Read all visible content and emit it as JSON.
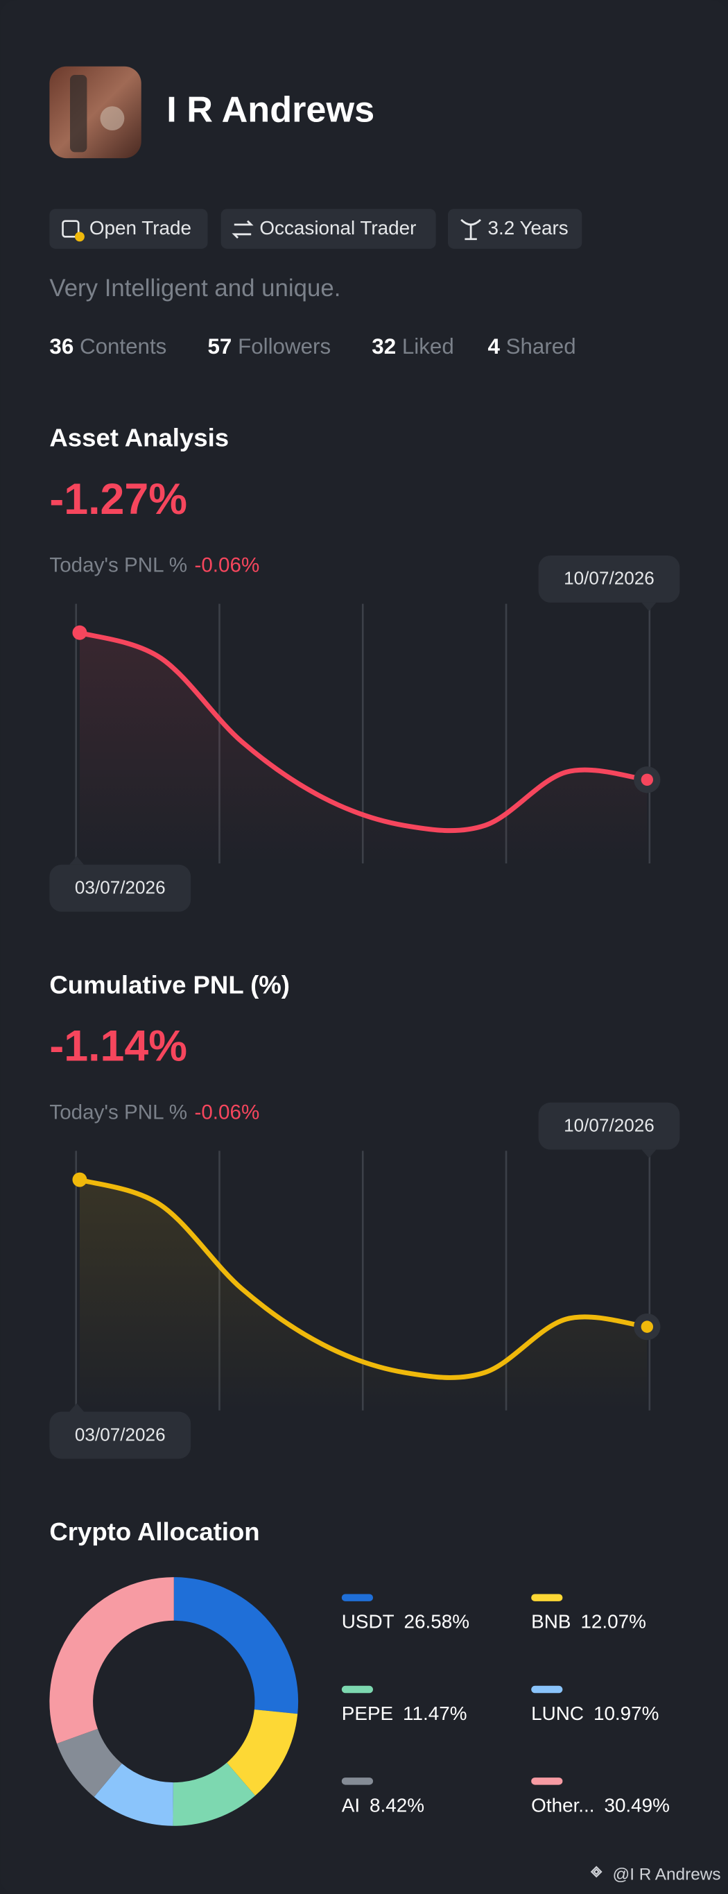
{
  "profile": {
    "name": "I R Andrews",
    "tags": [
      "Open Trade",
      "Occasional Trader",
      "3.2 Years"
    ],
    "bio": "Very Intelligent and unique.",
    "stats": [
      {
        "value": "36",
        "label": "Contents"
      },
      {
        "value": "57",
        "label": "Followers"
      },
      {
        "value": "32",
        "label": "Liked"
      },
      {
        "value": "4",
        "label": "Shared"
      }
    ]
  },
  "chart_data": [
    {
      "type": "line",
      "title": "Asset Analysis",
      "headline": "-1.27%",
      "pnl_label": "Today's PNL %",
      "pnl_value": "-0.06%",
      "categories": [
        "03/07/2026",
        null,
        null,
        null,
        null,
        null,
        null,
        "10/07/2026"
      ],
      "values": [
        91,
        81,
        48,
        26,
        15,
        15,
        36,
        33
      ],
      "color": "#f6465d",
      "ylim": [
        0,
        100
      ],
      "grid": true
    },
    {
      "type": "line",
      "title": "Cumulative PNL (%)",
      "headline": "-1.14%",
      "pnl_label": "Today's PNL %",
      "pnl_value": "-0.06%",
      "categories": [
        "03/07/2026",
        null,
        null,
        null,
        null,
        null,
        null,
        "10/07/2026"
      ],
      "values": [
        91,
        81,
        48,
        26,
        15,
        15,
        36,
        33
      ],
      "color": "#f0b90b",
      "ylim": [
        0,
        100
      ],
      "grid": true
    },
    {
      "type": "pie",
      "title": "Crypto Allocation",
      "categories": [
        "USDT",
        "BNB",
        "PEPE",
        "LUNC",
        "AI",
        "Other..."
      ],
      "values": [
        26.58,
        12.07,
        11.47,
        10.97,
        8.42,
        30.49
      ],
      "value_labels": [
        "26.58%",
        "12.07%",
        "11.47%",
        "10.97%",
        "8.42%",
        "30.49%"
      ],
      "colors": [
        "#1f6fd8",
        "#fdd835",
        "#7dd8b0",
        "#8ac4fb",
        "#858c96",
        "#f79ba3"
      ]
    }
  ],
  "watermark": "@I R Andrews"
}
